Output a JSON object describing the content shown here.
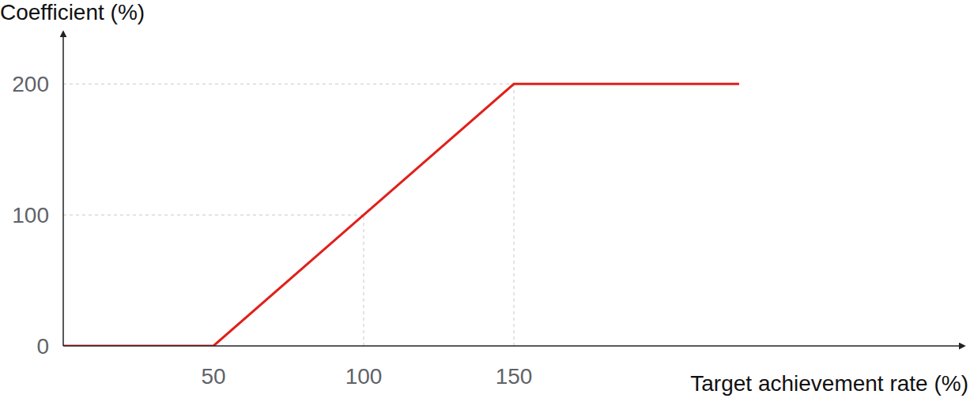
{
  "chart_data": {
    "type": "line",
    "x_label": "Target achievement rate (%)",
    "y_label": "Coefficient (%)",
    "x": [
      0,
      50,
      100,
      150,
      225
    ],
    "values": [
      0,
      0,
      100,
      200,
      200
    ],
    "color": "#e0201b",
    "xlim": [
      0,
      300
    ],
    "ylim": [
      0,
      240
    ],
    "xticks": [
      50,
      100,
      150
    ],
    "yticks": [
      0,
      100,
      200
    ],
    "grid": true
  }
}
